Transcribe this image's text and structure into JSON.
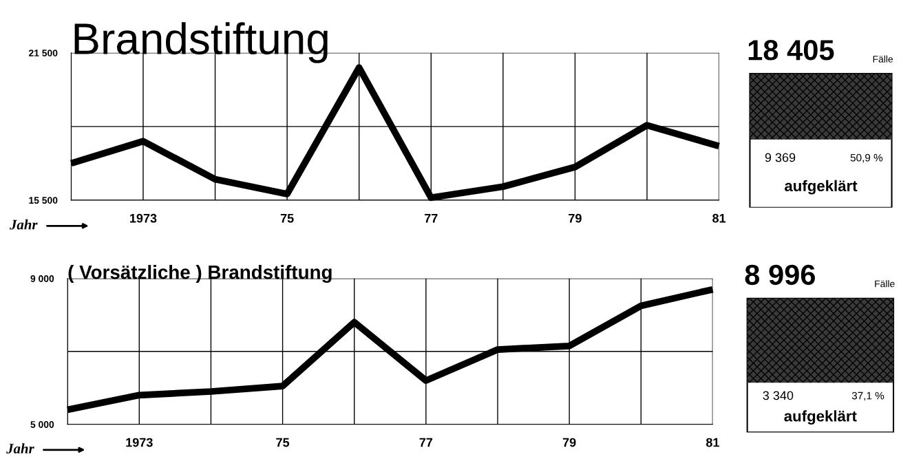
{
  "chart_data": [
    {
      "type": "line",
      "title": "Brandstiftung",
      "xlabel": "Jahr",
      "x": [
        1972,
        1973,
        1974,
        1975,
        1976,
        1977,
        1978,
        1979,
        1980,
        1981
      ],
      "series": [
        {
          "color": "#000000",
          "values": [
            17000,
            17900,
            16350,
            15750,
            20900,
            15600,
            16050,
            16850,
            18550,
            17700
          ]
        }
      ],
      "xlim": [
        1972,
        1981
      ],
      "xticks": [
        {
          "value": 1972,
          "label": null
        },
        {
          "value": 1973,
          "label": "1973"
        },
        {
          "value": 1974,
          "label": null
        },
        {
          "value": 1975,
          "label": "75"
        },
        {
          "value": 1976,
          "label": null
        },
        {
          "value": 1977,
          "label": "77"
        },
        {
          "value": 1978,
          "label": null
        },
        {
          "value": 1979,
          "label": "79"
        },
        {
          "value": 1980,
          "label": null
        },
        {
          "value": 1981,
          "label": "81"
        }
      ],
      "ylim": [
        15500,
        21500
      ],
      "yticks": [
        {
          "value": 15500,
          "label": "15 500"
        },
        {
          "value": 18500,
          "label": null
        },
        {
          "value": 21500,
          "label": "21 500"
        }
      ],
      "grid": true,
      "marker": "none",
      "line_style": "solid"
    },
    {
      "type": "other",
      "values": [
        50.9
      ],
      "value_labels": [
        "50,9 %"
      ],
      "annotations": [
        "18 405",
        "Fälle",
        "9 369",
        "aufgeklärt"
      ]
    },
    {
      "type": "line",
      "title": "( Vorsätzliche ) Brandstiftung",
      "xlabel": "Jahr",
      "x": [
        1972,
        1973,
        1974,
        1975,
        1976,
        1977,
        1978,
        1979,
        1980,
        1981
      ],
      "series": [
        {
          "color": "#000000",
          "values": [
            5400,
            5800,
            5900,
            6050,
            7800,
            6200,
            7050,
            7150,
            8250,
            8700
          ]
        }
      ],
      "xlim": [
        1972,
        1981
      ],
      "xticks": [
        {
          "value": 1972,
          "label": null
        },
        {
          "value": 1973,
          "label": "1973"
        },
        {
          "value": 1974,
          "label": null
        },
        {
          "value": 1975,
          "label": "75"
        },
        {
          "value": 1976,
          "label": null
        },
        {
          "value": 1977,
          "label": "77"
        },
        {
          "value": 1978,
          "label": null
        },
        {
          "value": 1979,
          "label": "79"
        },
        {
          "value": 1980,
          "label": null
        },
        {
          "value": 1981,
          "label": "81"
        }
      ],
      "ylim": [
        5000,
        9000
      ],
      "yticks": [
        {
          "value": 5000,
          "label": "5 000"
        },
        {
          "value": 7000,
          "label": null
        },
        {
          "value": 9000,
          "label": "9 000"
        }
      ],
      "grid": true,
      "marker": "none",
      "line_style": "solid"
    },
    {
      "type": "other",
      "values": [
        37.1
      ],
      "value_labels": [
        "37,1 %"
      ],
      "annotations": [
        "8 996",
        "Fälle",
        "3 340",
        "aufgeklärt"
      ]
    }
  ]
}
